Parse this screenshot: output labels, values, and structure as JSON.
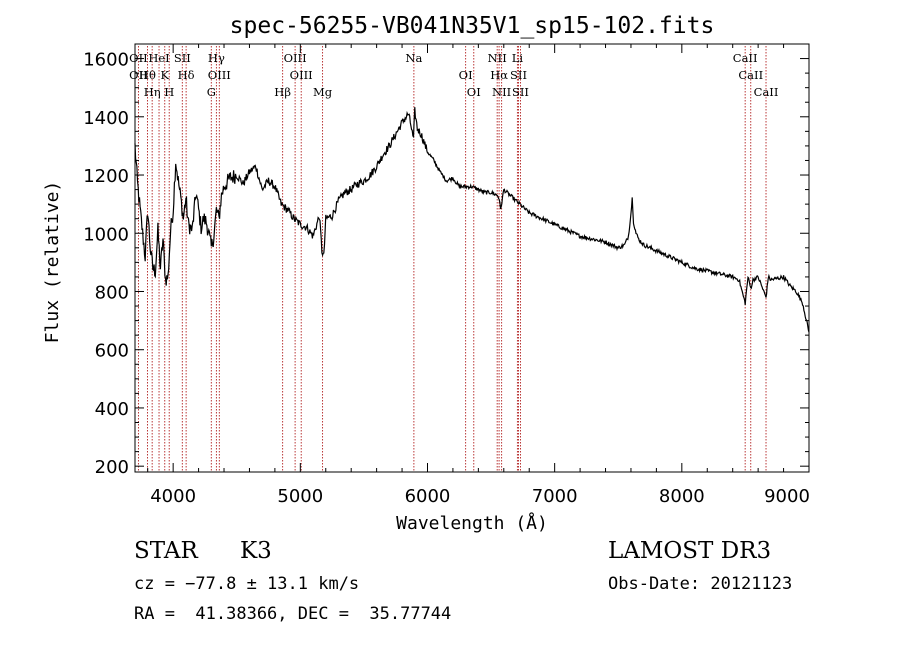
{
  "chart_data": {
    "type": "line",
    "title": "spec-56255-VB041N35V1_sp15-102.fits",
    "xlabel": "Wavelength (Å)",
    "ylabel": "Flux (relative)",
    "xlim": [
      3700,
      9000
    ],
    "ylim": [
      180,
      1650
    ],
    "xticks": [
      4000,
      5000,
      6000,
      7000,
      8000,
      9000
    ],
    "yticks": [
      200,
      400,
      600,
      800,
      1000,
      1200,
      1400,
      1600
    ],
    "grid": false,
    "series": [
      {
        "name": "spectrum",
        "color": "#000000",
        "x": [
          3700,
          3720,
          3740,
          3760,
          3780,
          3800,
          3820,
          3840,
          3860,
          3880,
          3900,
          3920,
          3940,
          3960,
          3980,
          4000,
          4020,
          4040,
          4060,
          4080,
          4100,
          4120,
          4150,
          4180,
          4200,
          4220,
          4240,
          4260,
          4280,
          4300,
          4320,
          4340,
          4360,
          4380,
          4400,
          4450,
          4500,
          4550,
          4600,
          4650,
          4700,
          4750,
          4800,
          4850,
          4900,
          4950,
          5000,
          5050,
          5100,
          5150,
          5170,
          5185,
          5200,
          5250,
          5300,
          5350,
          5400,
          5450,
          5500,
          5550,
          5600,
          5650,
          5700,
          5750,
          5800,
          5850,
          5870,
          5890,
          5900,
          5920,
          5950,
          6000,
          6050,
          6100,
          6150,
          6200,
          6250,
          6300,
          6350,
          6400,
          6450,
          6500,
          6550,
          6563,
          6575,
          6600,
          6650,
          6700,
          6750,
          6800,
          6900,
          7000,
          7100,
          7200,
          7300,
          7400,
          7500,
          7550,
          7580,
          7600,
          7610,
          7620,
          7640,
          7660,
          7700,
          7800,
          7900,
          8000,
          8100,
          8200,
          8300,
          8400,
          8450,
          8498,
          8520,
          8542,
          8560,
          8600,
          8662,
          8680,
          8700,
          8800,
          8850,
          8900,
          8950,
          9000
        ],
        "values": [
          1300,
          1170,
          1080,
          1000,
          920,
          1080,
          950,
          880,
          870,
          1010,
          880,
          980,
          840,
          850,
          1010,
          1080,
          1250,
          1180,
          1120,
          1050,
          1120,
          1030,
          1010,
          1140,
          1080,
          1020,
          1050,
          1040,
          1000,
          950,
          990,
          1080,
          1050,
          1130,
          1160,
          1190,
          1200,
          1170,
          1210,
          1230,
          1150,
          1180,
          1160,
          1100,
          1080,
          1050,
          1030,
          1020,
          990,
          1060,
          940,
          920,
          1050,
          1060,
          1110,
          1140,
          1150,
          1170,
          1180,
          1200,
          1230,
          1270,
          1300,
          1340,
          1380,
          1410,
          1370,
          1320,
          1420,
          1360,
          1340,
          1280,
          1250,
          1210,
          1180,
          1190,
          1160,
          1160,
          1160,
          1150,
          1140,
          1140,
          1130,
          1120,
          1080,
          1150,
          1130,
          1110,
          1090,
          1070,
          1050,
          1030,
          1010,
          990,
          980,
          970,
          950,
          960,
          990,
          1070,
          1120,
          1040,
          1000,
          980,
          960,
          940,
          920,
          900,
          880,
          870,
          860,
          850,
          840,
          760,
          850,
          810,
          840,
          850,
          780,
          850,
          840,
          850,
          820,
          800,
          760,
          660
        ]
      }
    ],
    "lines": [
      {
        "x": 3727,
        "labels": [
          "OII",
          "OII"
        ],
        "color": "#b22222"
      },
      {
        "x": 3798,
        "labels": [
          "Hθ"
        ],
        "color": "#b22222"
      },
      {
        "x": 3835,
        "labels": [
          "Hη"
        ],
        "color": "#b22222"
      },
      {
        "x": 3889,
        "labels": [
          "HeI"
        ],
        "color": "#b22222"
      },
      {
        "x": 3934,
        "labels": [
          "K"
        ],
        "color": "#b22222"
      },
      {
        "x": 3969,
        "labels": [
          "H"
        ],
        "color": "#b22222"
      },
      {
        "x": 4072,
        "labels": [
          "SII"
        ],
        "color": "#b22222"
      },
      {
        "x": 4102,
        "labels": [
          "Hδ"
        ],
        "color": "#b22222"
      },
      {
        "x": 4300,
        "labels": [
          "G"
        ],
        "color": "#b22222"
      },
      {
        "x": 4340,
        "labels": [
          "Hγ"
        ],
        "color": "#b22222"
      },
      {
        "x": 4363,
        "labels": [
          "OIII"
        ],
        "color": "#b22222"
      },
      {
        "x": 4861,
        "labels": [
          "Hβ"
        ],
        "color": "#b22222"
      },
      {
        "x": 4959,
        "labels": [
          "OIII"
        ],
        "color": "#b22222"
      },
      {
        "x": 5007,
        "labels": [
          "OIII"
        ],
        "color": "#b22222"
      },
      {
        "x": 5175,
        "labels": [
          "Mg"
        ],
        "color": "#b22222"
      },
      {
        "x": 5893,
        "labels": [
          "Na"
        ],
        "color": "#b22222"
      },
      {
        "x": 6300,
        "labels": [
          "OI"
        ],
        "color": "#b22222"
      },
      {
        "x": 6364,
        "labels": [
          "OI"
        ],
        "color": "#b22222"
      },
      {
        "x": 6548,
        "labels": [
          "NII"
        ],
        "color": "#b22222"
      },
      {
        "x": 6563,
        "labels": [
          "Hα"
        ],
        "color": "#b22222"
      },
      {
        "x": 6583,
        "labels": [
          "NII"
        ],
        "color": "#b22222"
      },
      {
        "x": 6707,
        "labels": [
          "Li"
        ],
        "color": "#b22222"
      },
      {
        "x": 6716,
        "labels": [
          "SII"
        ],
        "color": "#b22222"
      },
      {
        "x": 6731,
        "labels": [
          "SII"
        ],
        "color": "#b22222"
      },
      {
        "x": 8498,
        "labels": [
          "CaII"
        ],
        "color": "#b22222"
      },
      {
        "x": 8542,
        "labels": [
          "CaII"
        ],
        "color": "#b22222"
      },
      {
        "x": 8662,
        "labels": [
          "CaII"
        ],
        "color": "#b22222"
      }
    ]
  },
  "info": {
    "class": "STAR",
    "subclass": "K3",
    "survey": "LAMOST DR3",
    "cz": "cz = −77.8 ± 13.1 km/s",
    "obs_date": "Obs-Date: 20121123",
    "radec": "RA =  41.38366, DEC =  35.77744"
  }
}
